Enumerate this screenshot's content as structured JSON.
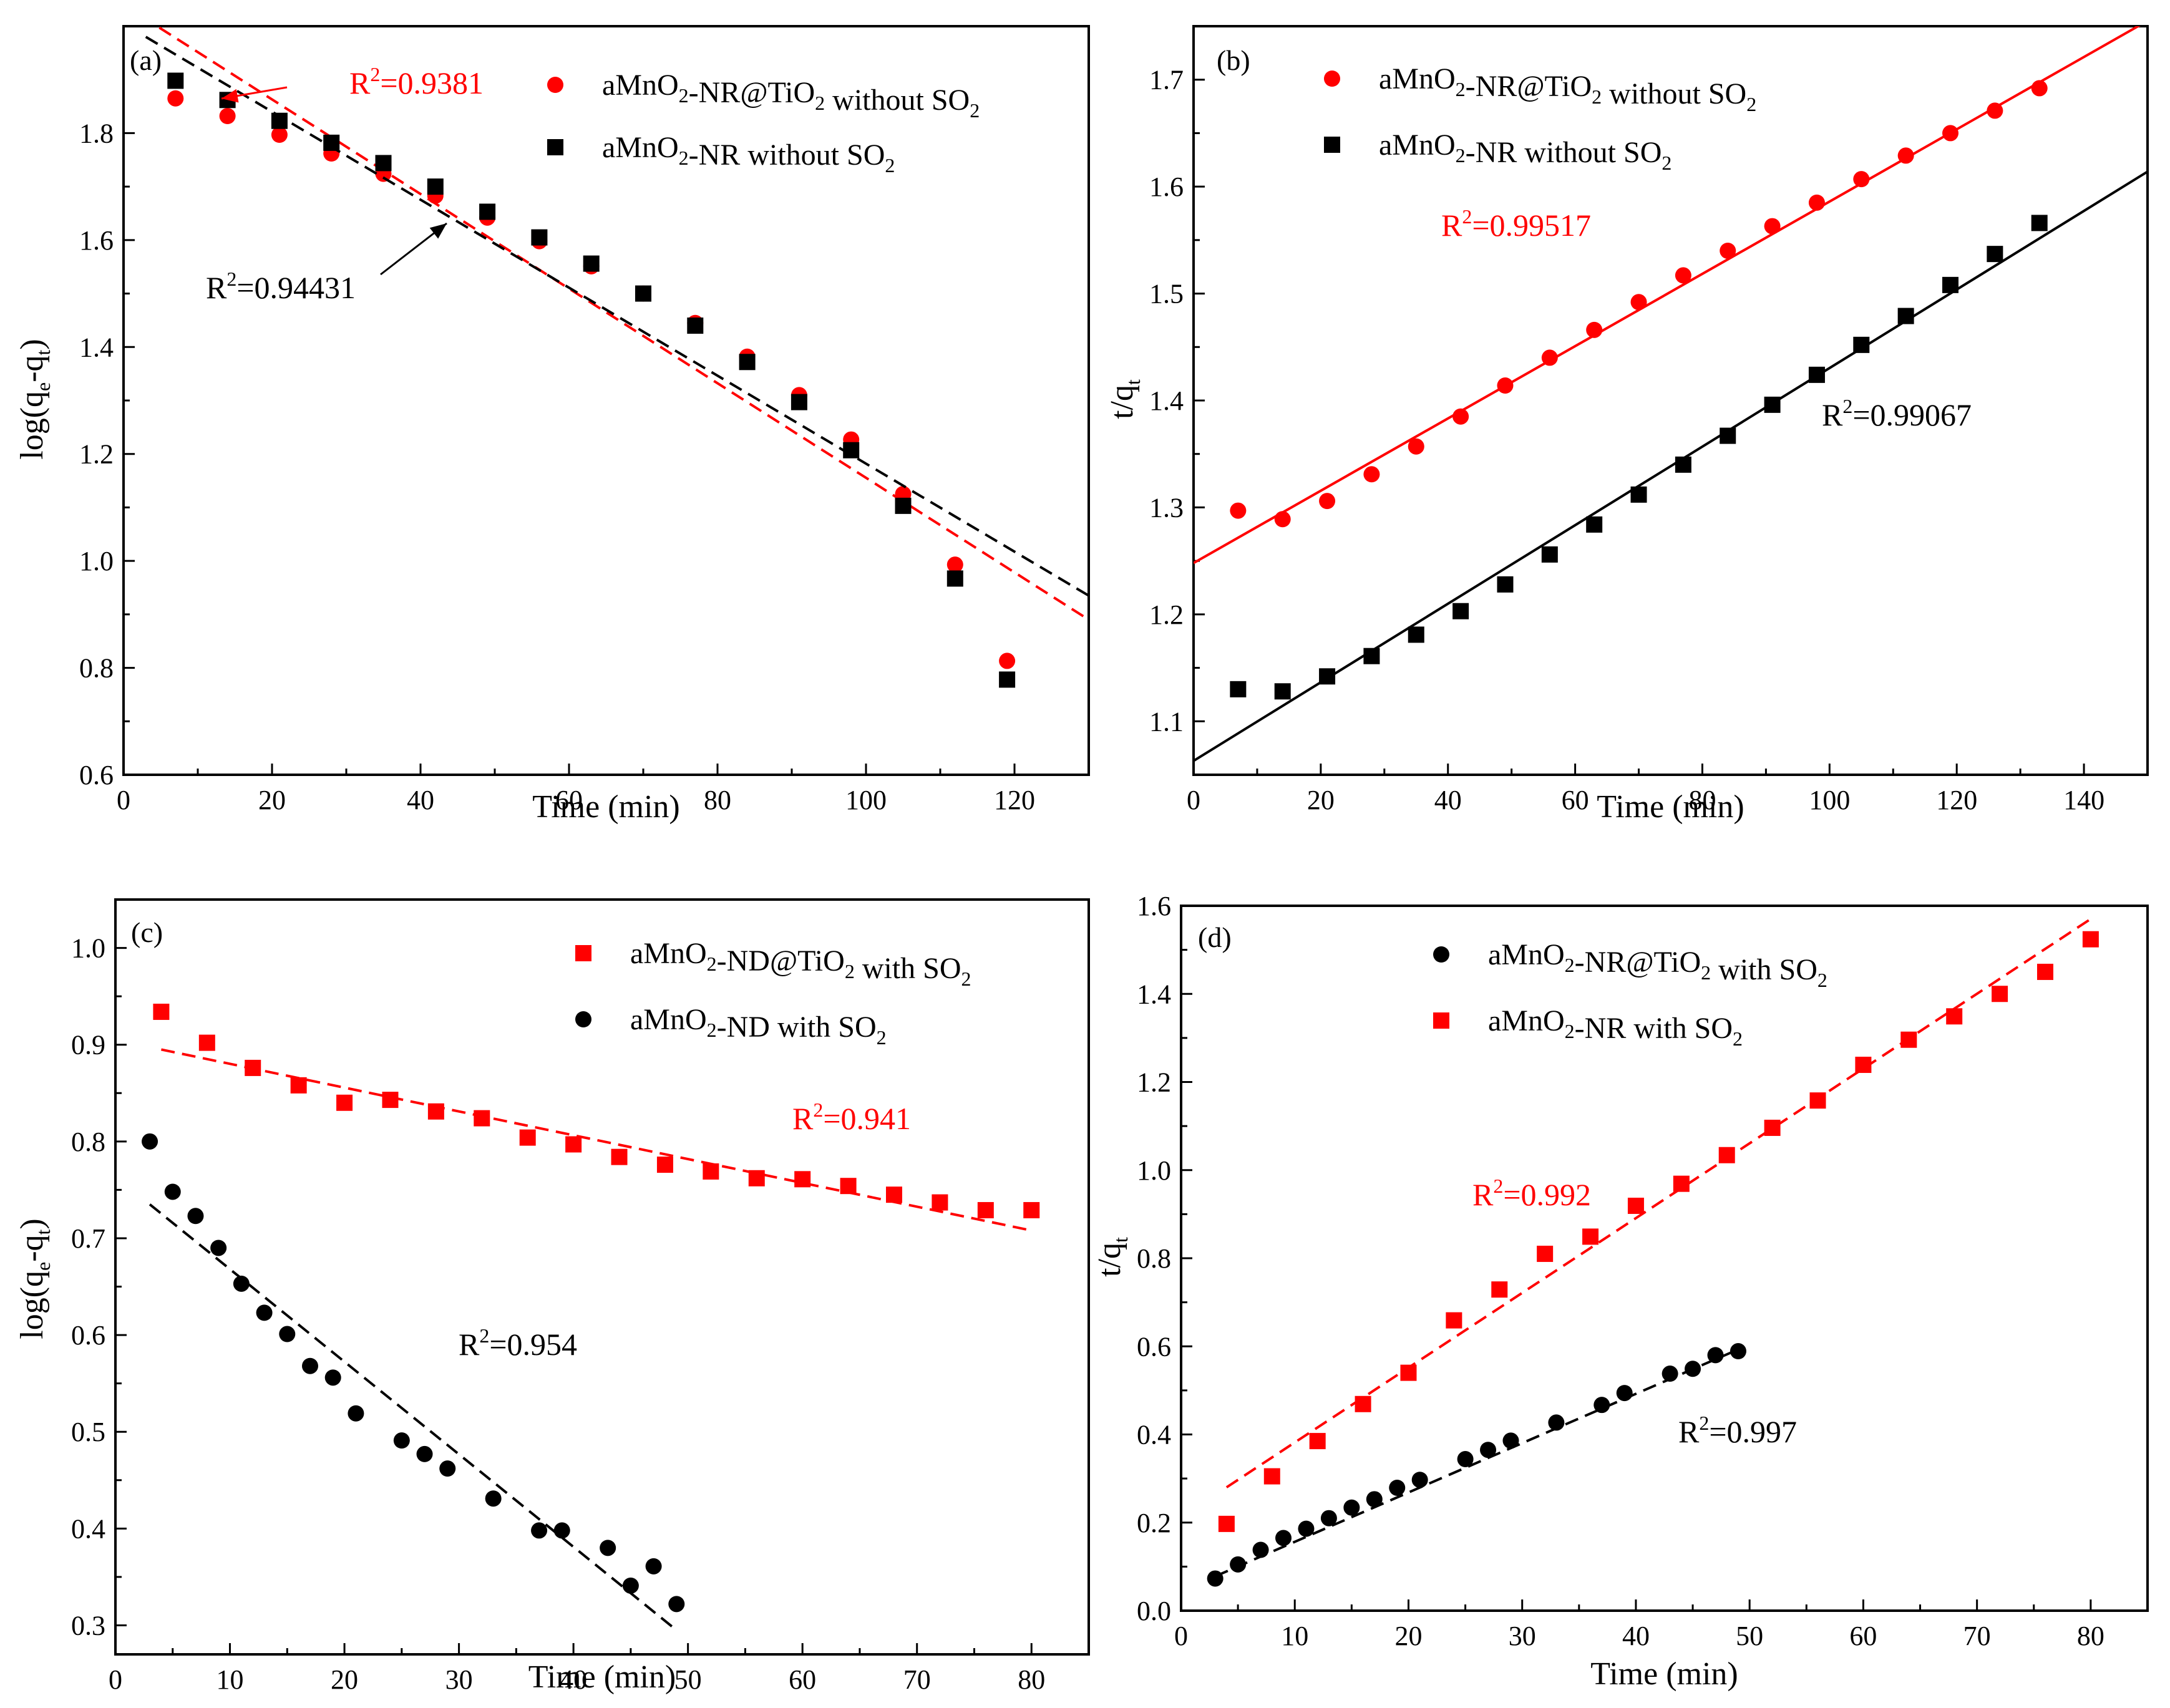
{
  "chart_data": [
    {
      "panel": "(a)",
      "type": "scatter",
      "xlabel": "Time (min)",
      "ylabel": "log(q_e-q_t)",
      "xlim": [
        0,
        130
      ],
      "ylim": [
        0.6,
        2.0
      ],
      "xticks": [
        0,
        20,
        40,
        60,
        80,
        100,
        120
      ],
      "yticks": [
        0.6,
        0.8,
        1.0,
        1.2,
        1.4,
        1.6,
        1.8
      ],
      "legend_position": "top-right",
      "series": [
        {
          "name": "aMnO2-NR@TiO2 without SO2",
          "color": "#ff0000",
          "marker": "circle",
          "x": [
            7,
            14,
            21,
            28,
            35,
            42,
            49,
            56,
            63,
            70,
            77,
            84,
            91,
            98,
            105,
            112,
            119
          ],
          "y": [
            1.865,
            1.832,
            1.797,
            1.762,
            1.724,
            1.683,
            1.642,
            1.598,
            1.551,
            1.5,
            1.445,
            1.382,
            1.31,
            1.227,
            1.125,
            0.993,
            0.813
          ],
          "fit": {
            "style": "dashed",
            "x": [
              0,
              130
            ],
            "y": [
              2.04,
              0.89
            ]
          }
        },
        {
          "name": "aMnO2-NR without SO2",
          "color": "#000000",
          "marker": "square",
          "x": [
            7,
            14,
            21,
            28,
            35,
            42,
            49,
            56,
            63,
            70,
            77,
            84,
            91,
            98,
            105,
            112,
            119
          ],
          "y": [
            1.898,
            1.862,
            1.823,
            1.782,
            1.744,
            1.7,
            1.653,
            1.605,
            1.556,
            1.5,
            1.44,
            1.372,
            1.297,
            1.207,
            1.103,
            0.967,
            0.778
          ],
          "fit": {
            "style": "dashed",
            "x": [
              3,
              130
            ],
            "y": [
              1.98,
              0.935
            ]
          }
        }
      ],
      "annotations": [
        {
          "base": "R",
          "sup": "2",
          "rest": "=0.9381",
          "color": "#ff0000"
        },
        {
          "base": "R",
          "sup": "2",
          "rest": "=0.94431",
          "color": "#000000"
        }
      ]
    },
    {
      "panel": "(b)",
      "type": "scatter",
      "xlabel": "Time (min)",
      "ylabel": "t/q_t",
      "xlim": [
        0,
        150
      ],
      "ylim": [
        1.05,
        1.75
      ],
      "xticks": [
        0,
        20,
        40,
        60,
        80,
        100,
        120,
        140
      ],
      "yticks": [
        1.1,
        1.2,
        1.3,
        1.4,
        1.5,
        1.6,
        1.7
      ],
      "legend_position": "top-left",
      "series": [
        {
          "name": "aMnO2-NR@TiO2 without SO2",
          "color": "#ff0000",
          "marker": "circle",
          "x": [
            7,
            14,
            21,
            28,
            35,
            42,
            49,
            56,
            63,
            70,
            77,
            84,
            91,
            98,
            105,
            112,
            119,
            126,
            133
          ],
          "y": [
            1.297,
            1.289,
            1.306,
            1.331,
            1.357,
            1.385,
            1.414,
            1.44,
            1.466,
            1.492,
            1.517,
            1.54,
            1.563,
            1.585,
            1.607,
            1.629,
            1.65,
            1.671,
            1.692
          ],
          "fit": {
            "style": "solid",
            "x": [
              0,
              150
            ],
            "y": [
              1.248,
              1.755
            ]
          }
        },
        {
          "name": "aMnO2-NR without SO2",
          "color": "#000000",
          "marker": "square",
          "x": [
            7,
            14,
            21,
            28,
            35,
            42,
            49,
            56,
            63,
            70,
            77,
            84,
            91,
            98,
            105,
            112,
            119,
            126,
            133
          ],
          "y": [
            1.13,
            1.128,
            1.142,
            1.161,
            1.181,
            1.203,
            1.228,
            1.256,
            1.284,
            1.312,
            1.34,
            1.367,
            1.396,
            1.424,
            1.452,
            1.479,
            1.508,
            1.537,
            1.566
          ],
          "fit": {
            "style": "solid",
            "x": [
              0,
              150
            ],
            "y": [
              1.063,
              1.614
            ]
          }
        }
      ],
      "annotations": [
        {
          "base": "R",
          "sup": "2",
          "rest": "=0.99517",
          "color": "#ff0000"
        },
        {
          "base": "R",
          "sup": "2",
          "rest": "=0.99067",
          "color": "#000000"
        }
      ]
    },
    {
      "panel": "(c)",
      "type": "scatter",
      "xlabel": "Time (min)",
      "ylabel": "log(q_e-q_t)",
      "xlim": [
        0,
        85
      ],
      "ylim": [
        0.27,
        1.05
      ],
      "xticks": [
        0,
        10,
        20,
        30,
        40,
        50,
        60,
        70,
        80
      ],
      "yticks": [
        0.3,
        0.4,
        0.5,
        0.6,
        0.7,
        0.8,
        0.9,
        1.0
      ],
      "legend_position": "top-right",
      "series": [
        {
          "name": "aMnO2-ND@TiO2 with SO2",
          "color": "#ff0000",
          "marker": "square",
          "x": [
            4,
            8,
            12,
            16,
            20,
            24,
            28,
            32,
            36,
            40,
            44,
            48,
            52,
            56,
            60,
            64,
            68,
            72,
            76,
            80
          ],
          "y": [
            0.934,
            0.902,
            0.876,
            0.858,
            0.84,
            0.843,
            0.831,
            0.824,
            0.804,
            0.797,
            0.784,
            0.776,
            0.769,
            0.762,
            0.761,
            0.754,
            0.745,
            0.737,
            0.729,
            0.729
          ],
          "fit": {
            "style": "dashed",
            "x": [
              4,
              80
            ],
            "y": [
              0.895,
              0.708
            ]
          }
        },
        {
          "name": "aMnO2-ND with SO2",
          "color": "#000000",
          "marker": "circle",
          "x": [
            3,
            5,
            7,
            9,
            11,
            13,
            15,
            17,
            19,
            21,
            25,
            27,
            29,
            33,
            37,
            39,
            43,
            45,
            47,
            49
          ],
          "y": [
            0.8,
            0.748,
            0.723,
            0.69,
            0.653,
            0.623,
            0.601,
            0.568,
            0.556,
            0.519,
            0.491,
            0.477,
            0.462,
            0.431,
            0.398,
            0.398,
            0.38,
            0.341,
            0.361,
            0.322
          ],
          "fit": {
            "style": "dashed",
            "x": [
              3,
              49
            ],
            "y": [
              0.735,
              0.295
            ]
          }
        }
      ],
      "annotations": [
        {
          "base": "R",
          "sup": "2",
          "rest": "=0.941",
          "color": "#ff0000"
        },
        {
          "base": "R",
          "sup": "2",
          "rest": "=0.954",
          "color": "#000000"
        }
      ]
    },
    {
      "panel": "(d)",
      "type": "scatter",
      "xlabel": "Time (min)",
      "ylabel": "t/q_t",
      "xlim": [
        0,
        85
      ],
      "ylim": [
        0.0,
        1.6
      ],
      "xticks": [
        0,
        10,
        20,
        30,
        40,
        50,
        60,
        70,
        80
      ],
      "yticks": [
        0.0,
        0.2,
        0.4,
        0.6,
        0.8,
        1.0,
        1.2,
        1.4,
        1.6
      ],
      "legend_position": "top-left",
      "series": [
        {
          "name": "aMnO2-NR@TiO2 with SO2",
          "color": "#000000",
          "marker": "circle",
          "x": [
            3,
            5,
            7,
            9,
            11,
            13,
            15,
            17,
            19,
            21,
            25,
            27,
            29,
            33,
            37,
            39,
            43,
            45,
            47,
            49
          ],
          "y": [
            0.073,
            0.105,
            0.138,
            0.165,
            0.186,
            0.21,
            0.234,
            0.253,
            0.279,
            0.297,
            0.344,
            0.365,
            0.386,
            0.427,
            0.467,
            0.494,
            0.538,
            0.549,
            0.58,
            0.589
          ],
          "fit": {
            "style": "dashed",
            "x": [
              3,
              49
            ],
            "y": [
              0.078,
              0.593
            ]
          }
        },
        {
          "name": "aMnO2-NR with SO2",
          "color": "#ff0000",
          "marker": "square",
          "x": [
            4,
            8,
            12,
            16,
            20,
            24,
            28,
            32,
            36,
            40,
            44,
            48,
            52,
            56,
            60,
            64,
            68,
            72,
            76,
            80
          ],
          "y": [
            0.197,
            0.305,
            0.385,
            0.469,
            0.54,
            0.659,
            0.729,
            0.81,
            0.849,
            0.919,
            0.969,
            1.034,
            1.096,
            1.158,
            1.239,
            1.296,
            1.349,
            1.4,
            1.45,
            1.524
          ],
          "fit": {
            "style": "dashed",
            "x": [
              4,
              80
            ],
            "y": [
              0.28,
              1.57
            ]
          }
        }
      ],
      "annotations": [
        {
          "base": "R",
          "sup": "2",
          "rest": "=0.992",
          "color": "#ff0000"
        },
        {
          "base": "R",
          "sup": "2",
          "rest": "=0.997",
          "color": "#000000"
        }
      ]
    }
  ]
}
